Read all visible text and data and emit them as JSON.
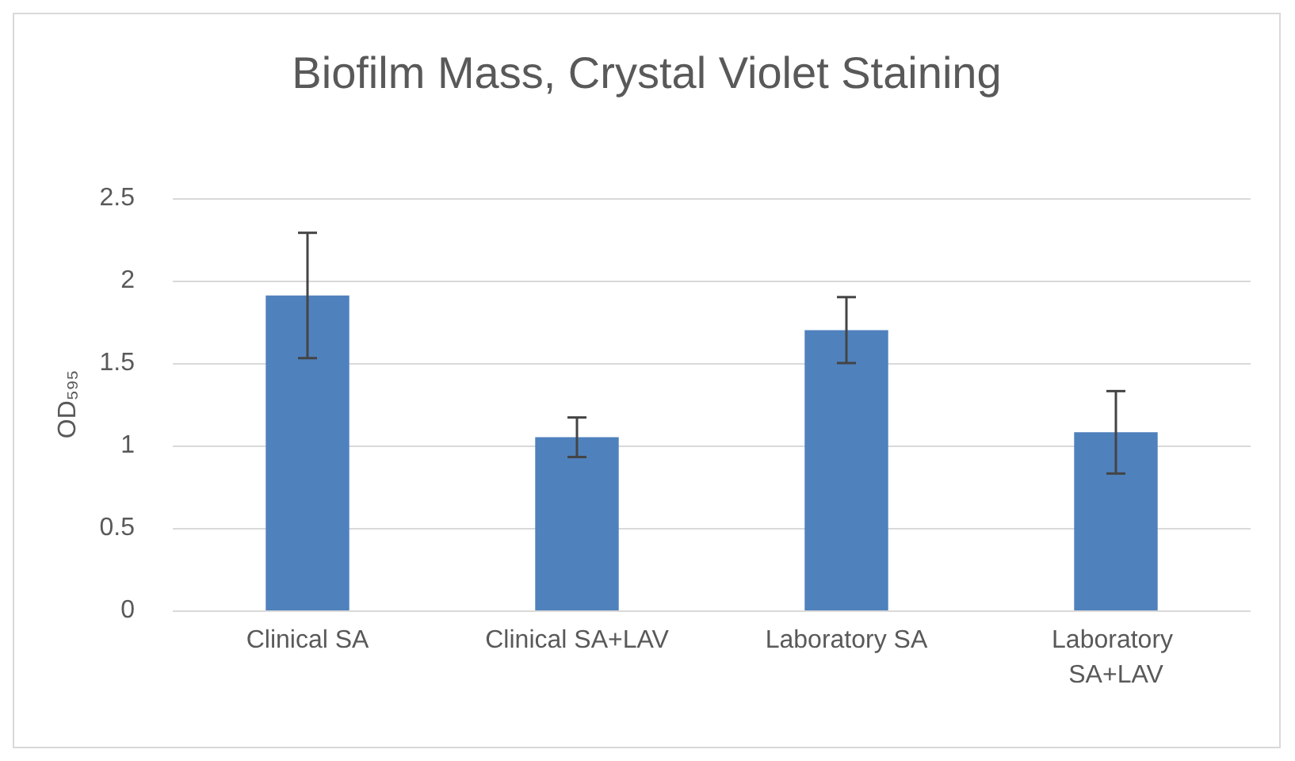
{
  "chart_data": {
    "type": "bar",
    "title": "Biofilm Mass, Crystal Violet Staining",
    "ylabel": "OD₅₉₅",
    "categories": [
      "Clinical SA",
      "Clinical SA+LAV",
      "Laboratory SA",
      "Laboratory SA+LAV"
    ],
    "values": [
      1.91,
      1.05,
      1.7,
      1.08
    ],
    "color": "#4f81bd",
    "errors": [
      [
        1.53,
        2.29
      ],
      [
        0.93,
        1.17
      ],
      [
        1.5,
        1.9
      ],
      [
        0.83,
        1.33
      ]
    ],
    "ylim": [
      0,
      2.5
    ],
    "yticks": [
      0,
      0.5,
      1,
      1.5,
      2,
      2.5
    ],
    "grid": "y"
  }
}
